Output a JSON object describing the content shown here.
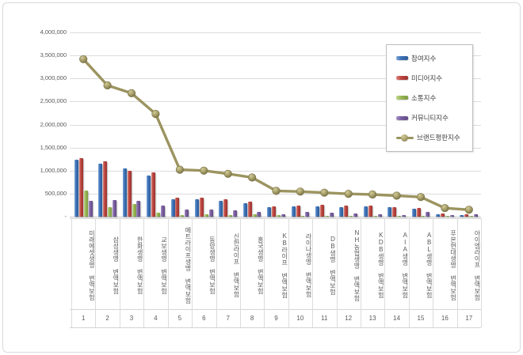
{
  "window": {
    "background": "#ffffff",
    "frame_border": "#d9d9d9"
  },
  "chart_data": {
    "type": "bar",
    "subtype": "grouped-bars-with-line-overlay",
    "title": "",
    "grid": true,
    "legend_position": "upper-right",
    "categories": [
      "미래에셋생명 변액보험",
      "삼성생명 변액보험",
      "한화생명 변액보험",
      "교보생명 변액보험",
      "메트라이프생명 변액보험",
      "동양생명 변액보험",
      "신한라이프 변액보험",
      "흥국생명 변액보험",
      "KB라이프 변액보험",
      "라이나생명 변액보험",
      "DB생명 변액보험",
      "NH농협생명 변액보험",
      "KDB생명 변액보험",
      "AIA생명 변액보험",
      "ABL생명 변액보험",
      "푸본현대생명 변액보험",
      "아이엠라이프 변액보험"
    ],
    "category_numbers": [
      "1",
      "2",
      "3",
      "4",
      "5",
      "6",
      "7",
      "8",
      "9",
      "10",
      "11",
      "12",
      "13",
      "14",
      "15",
      "16",
      "17"
    ],
    "series": [
      {
        "name": "참여지수",
        "type": "bar",
        "color": "#3e74b8",
        "values": [
          1230000,
          1150000,
          1050000,
          900000,
          380000,
          370000,
          340000,
          290000,
          200000,
          220000,
          230000,
          215000,
          225000,
          200000,
          175000,
          60000,
          40000
        ]
      },
      {
        "name": "미디어지수",
        "type": "bar",
        "color": "#bf4742",
        "values": [
          1270000,
          1200000,
          1000000,
          970000,
          420000,
          410000,
          380000,
          320000,
          230000,
          240000,
          255000,
          235000,
          245000,
          215000,
          190000,
          70000,
          45000
        ]
      },
      {
        "name": "소통지수",
        "type": "bar",
        "color": "#9cba58",
        "values": [
          570000,
          210000,
          280000,
          90000,
          40000,
          60000,
          40000,
          50000,
          30000,
          20000,
          15000,
          20000,
          10000,
          10000,
          20000,
          10000,
          10000
        ]
      },
      {
        "name": "커뮤니티지수",
        "type": "bar",
        "color": "#7b61a2",
        "values": [
          350000,
          360000,
          340000,
          240000,
          160000,
          150000,
          130000,
          100000,
          60000,
          100000,
          85000,
          70000,
          60000,
          40000,
          100000,
          35000,
          55000
        ]
      },
      {
        "name": "브랜드평판지수",
        "type": "line",
        "color": "#9c9460",
        "values": [
          3420000,
          2850000,
          2680000,
          2230000,
          1020000,
          1000000,
          930000,
          850000,
          560000,
          545000,
          520000,
          495000,
          480000,
          455000,
          425000,
          185000,
          150000
        ]
      }
    ],
    "y_axis": {
      "min": 0,
      "max": 4000000,
      "step": 500000,
      "tick_labels": [
        "-",
        "500,000",
        "1,000,000",
        "1,500,000",
        "2,000,000",
        "2,500,000",
        "3,000,000",
        "3,500,000",
        "4,000,000"
      ]
    }
  }
}
